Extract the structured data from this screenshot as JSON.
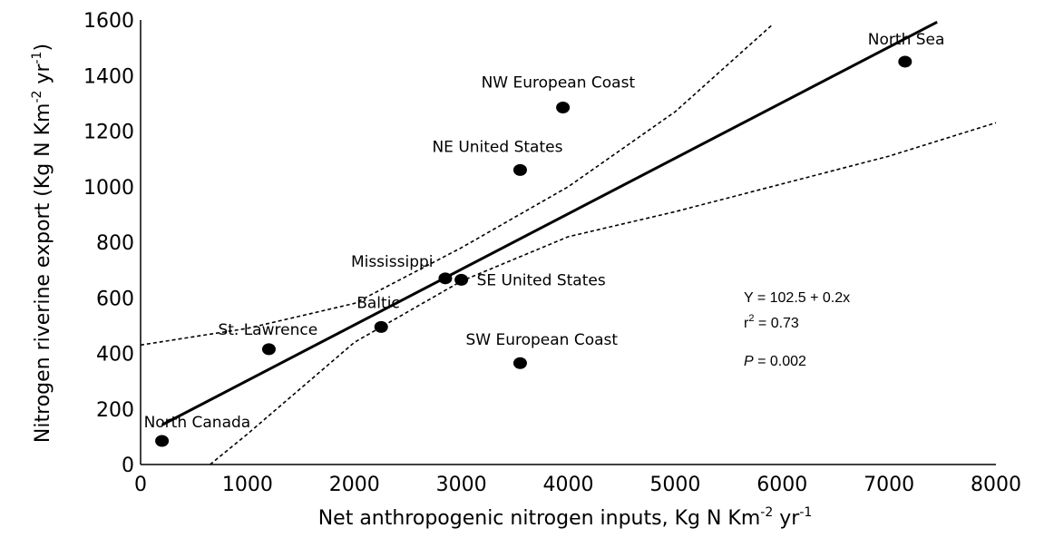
{
  "chart_data": {
    "type": "scatter",
    "xlabel": "Net anthropogenic nitrogen inputs, Kg N Km",
    "xlabel_sup1": "-2",
    "xlabel_mid": " yr",
    "xlabel_sup2": "-1",
    "ylabel": "Nitrogen riverine export (Kg N Km",
    "ylabel_sup1": "-2",
    "ylabel_mid": " yr",
    "ylabel_sup2": "-1",
    "ylabel_end": ")",
    "xlim": [
      0,
      8000
    ],
    "ylim": [
      0,
      1600
    ],
    "x_ticks": [
      0,
      1000,
      2000,
      3000,
      4000,
      5000,
      6000,
      7000,
      8000
    ],
    "y_ticks": [
      0,
      200,
      400,
      600,
      800,
      1000,
      1200,
      1400,
      1600
    ],
    "grid": false,
    "points": [
      {
        "label": "North Canada",
        "x": 200,
        "y": 85
      },
      {
        "label": "St. Lawrence",
        "x": 1200,
        "y": 415
      },
      {
        "label": "Baltic",
        "x": 2250,
        "y": 495
      },
      {
        "label": "Mississippi",
        "x": 2850,
        "y": 670
      },
      {
        "label": "SE United States",
        "x": 3000,
        "y": 665
      },
      {
        "label": "NE United States",
        "x": 3550,
        "y": 1060
      },
      {
        "label": "SW European Coast",
        "x": 3550,
        "y": 365
      },
      {
        "label": "NW European Coast",
        "x": 3950,
        "y": 1285
      },
      {
        "label": "North Sea",
        "x": 7150,
        "y": 1450
      }
    ],
    "regression": {
      "intercept": 102.5,
      "slope": 0.2,
      "x_range": [
        200,
        7450
      ]
    },
    "confidence_band": {
      "upper": [
        [
          0,
          430
        ],
        [
          1000,
          490
        ],
        [
          2000,
          580
        ],
        [
          3000,
          780
        ],
        [
          4000,
          1000
        ],
        [
          5000,
          1270
        ],
        [
          5900,
          1580
        ]
      ],
      "lower": [
        [
          650,
          0
        ],
        [
          1000,
          110
        ],
        [
          2000,
          440
        ],
        [
          3000,
          660
        ],
        [
          4000,
          820
        ],
        [
          5000,
          910
        ],
        [
          6000,
          1010
        ],
        [
          7000,
          1110
        ],
        [
          8000,
          1230
        ]
      ]
    },
    "annotations": {
      "equation": "Y = 102.5 + 0.2x",
      "r2_prefix": "r",
      "r2_sup": "2",
      "r2_value": " = 0.73",
      "p_label": "P",
      "p_value": " = 0.002"
    }
  }
}
